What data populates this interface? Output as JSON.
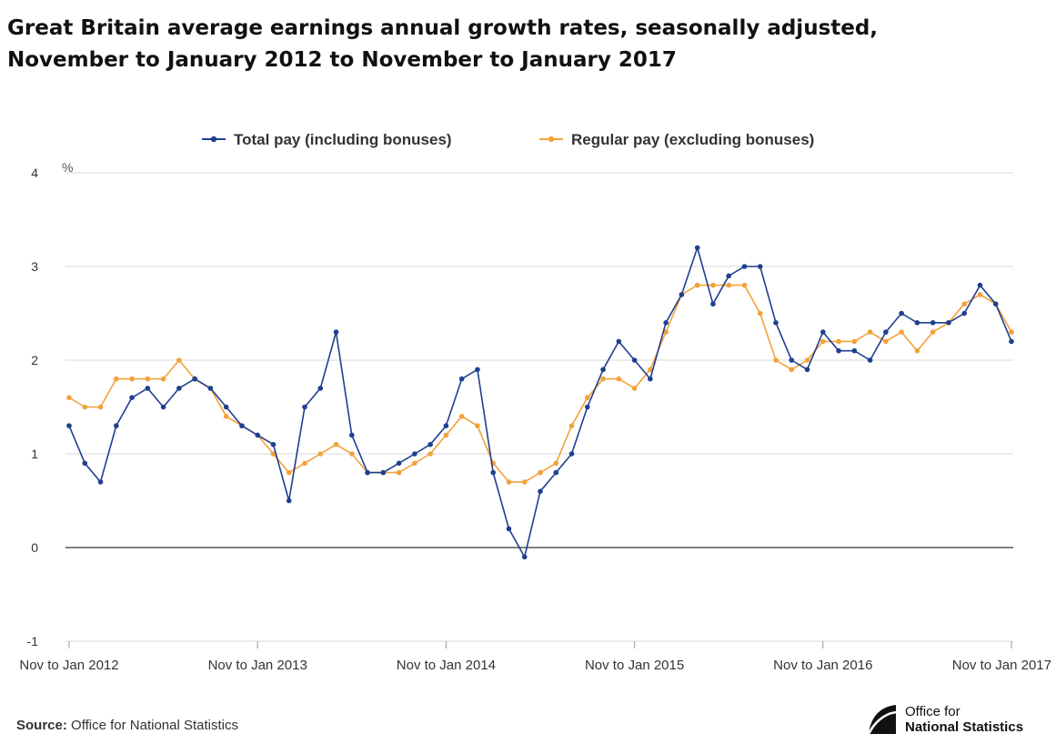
{
  "header": {
    "title_line1": "Great Britain average earnings annual growth rates, seasonally adjusted,",
    "title_line2": "November to January 2012 to November to January 2017"
  },
  "footer": {
    "source_label": "Source:",
    "source_text": "Office for National Statistics",
    "logo_line1": "Office for",
    "logo_line2": "National Statistics"
  },
  "colors": {
    "total": "#1f3f8f",
    "regular": "#f2a23a",
    "grid": "#d9d9d9",
    "zero": "#555555"
  },
  "chart_data": {
    "type": "line",
    "title": "Great Britain average earnings annual growth rates, seasonally adjusted, November to January 2012 to November to January 2017",
    "ylabel": "%",
    "xlabel": "",
    "ylim": [
      -1,
      4
    ],
    "yticks": [
      -1,
      0,
      1,
      2,
      3,
      4
    ],
    "grid": true,
    "legend": "top-center",
    "x_tick_labels": [
      {
        "index": 0,
        "label": "Nov to Jan 2012"
      },
      {
        "index": 12,
        "label": "Nov to Jan 2013"
      },
      {
        "index": 24,
        "label": "Nov to Jan 2014"
      },
      {
        "index": 36,
        "label": "Nov to Jan 2015"
      },
      {
        "index": 48,
        "label": "Nov to Jan 2016"
      },
      {
        "index": 60,
        "label": "Nov to Jan 2017"
      }
    ],
    "series": [
      {
        "name": "Total pay (including bonuses)",
        "color": "#1f3f8f",
        "values": [
          1.3,
          0.9,
          0.7,
          1.3,
          1.6,
          1.7,
          1.5,
          1.7,
          1.8,
          1.7,
          1.5,
          1.3,
          1.2,
          1.1,
          0.5,
          1.5,
          1.7,
          2.3,
          1.2,
          0.8,
          0.8,
          0.9,
          1.0,
          1.1,
          1.3,
          1.8,
          1.9,
          0.8,
          0.2,
          -0.1,
          0.6,
          0.8,
          1.0,
          1.5,
          1.9,
          2.2,
          2.0,
          1.8,
          2.4,
          2.7,
          3.2,
          2.6,
          2.9,
          3.0,
          3.0,
          2.4,
          2.0,
          1.9,
          2.3,
          2.1,
          2.1,
          2.0,
          2.3,
          2.5,
          2.4,
          2.4,
          2.4,
          2.5,
          2.8,
          2.6,
          2.2
        ]
      },
      {
        "name": "Regular pay (excluding bonuses)",
        "color": "#f2a23a",
        "values": [
          1.6,
          1.5,
          1.5,
          1.8,
          1.8,
          1.8,
          1.8,
          2.0,
          1.8,
          1.7,
          1.4,
          1.3,
          1.2,
          1.0,
          0.8,
          0.9,
          1.0,
          1.1,
          1.0,
          0.8,
          0.8,
          0.8,
          0.9,
          1.0,
          1.2,
          1.4,
          1.3,
          0.9,
          0.7,
          0.7,
          0.8,
          0.9,
          1.3,
          1.6,
          1.8,
          1.8,
          1.7,
          1.9,
          2.3,
          2.7,
          2.8,
          2.8,
          2.8,
          2.8,
          2.5,
          2.0,
          1.9,
          2.0,
          2.2,
          2.2,
          2.2,
          2.3,
          2.2,
          2.3,
          2.1,
          2.3,
          2.4,
          2.6,
          2.7,
          2.6,
          2.3
        ]
      }
    ]
  }
}
